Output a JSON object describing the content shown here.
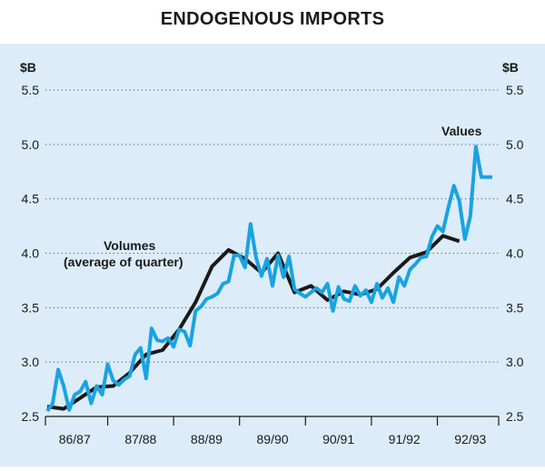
{
  "chart_data": {
    "type": "line",
    "title": "ENDOGENOUS IMPORTS",
    "ylabel_left": "$B",
    "ylabel_right": "$B",
    "ylim": [
      2.5,
      5.5
    ],
    "yticks": [
      "2.5",
      "3.0",
      "3.5",
      "4.0",
      "4.5",
      "5.0",
      "5.5"
    ],
    "categories": [
      "86/87",
      "87/88",
      "88/89",
      "89/90",
      "90/91",
      "91/92",
      "92/93"
    ],
    "x_unit": "months since July 1986",
    "grid": "horizontal dotted",
    "colors": {
      "panel": "#dcecf8",
      "volumes": "#1a1a1a",
      "values": "#1aa3e0",
      "grid": "#555555"
    },
    "annotations": {
      "values_label": "Values",
      "volumes_label": "Volumes",
      "volumes_sublabel": "(average of quarter)"
    },
    "series": [
      {
        "name": "Volumes",
        "x": [
          0,
          3,
          6,
          9,
          12,
          15,
          18,
          21,
          24,
          27,
          30,
          33,
          36,
          39,
          42,
          45,
          48,
          51,
          54,
          57,
          60,
          63,
          66,
          69,
          72,
          75,
          78,
          81,
          84
        ],
        "values": [
          2.59,
          2.57,
          2.67,
          2.77,
          2.78,
          2.9,
          3.07,
          3.11,
          3.3,
          3.55,
          3.88,
          4.03,
          3.95,
          3.82,
          4.0,
          3.64,
          3.7,
          3.57,
          3.65,
          3.62,
          3.67,
          3.82,
          3.96,
          4.01,
          4.16,
          4.11,
          null,
          null,
          null
        ]
      },
      {
        "name": "Values",
        "x": [
          0,
          1,
          2,
          3,
          4,
          5,
          6,
          7,
          8,
          9,
          10,
          11,
          12,
          13,
          14,
          15,
          16,
          17,
          18,
          19,
          20,
          21,
          22,
          23,
          24,
          25,
          26,
          27,
          28,
          29,
          30,
          31,
          32,
          33,
          34,
          35,
          36,
          37,
          38,
          39,
          40,
          41,
          42,
          43,
          44,
          45,
          46,
          47,
          48,
          49,
          50,
          51,
          52,
          53,
          54,
          55,
          56,
          57,
          58,
          59,
          60,
          61,
          62,
          63,
          64,
          65,
          66,
          67,
          68,
          69,
          70,
          71,
          72,
          73,
          74,
          75,
          76,
          77,
          78,
          79,
          80,
          81
        ],
        "values": [
          2.55,
          2.62,
          2.93,
          2.78,
          2.56,
          2.7,
          2.73,
          2.82,
          2.62,
          2.78,
          2.7,
          2.98,
          2.83,
          2.79,
          2.84,
          2.87,
          3.07,
          3.13,
          2.85,
          3.31,
          3.2,
          3.19,
          3.22,
          3.14,
          3.3,
          3.28,
          3.15,
          3.47,
          3.51,
          3.58,
          3.6,
          3.63,
          3.72,
          3.74,
          3.98,
          3.98,
          3.87,
          4.27,
          3.96,
          3.79,
          3.95,
          3.7,
          3.98,
          3.78,
          3.97,
          3.67,
          3.63,
          3.6,
          3.64,
          3.68,
          3.64,
          3.72,
          3.47,
          3.69,
          3.58,
          3.56,
          3.7,
          3.61,
          3.66,
          3.55,
          3.72,
          3.59,
          3.68,
          3.55,
          3.78,
          3.7,
          3.85,
          3.9,
          3.96,
          3.97,
          4.15,
          4.25,
          4.2,
          4.42,
          4.62,
          4.48,
          4.13,
          4.34,
          4.98,
          4.7,
          4.7,
          4.7
        ]
      }
    ]
  }
}
